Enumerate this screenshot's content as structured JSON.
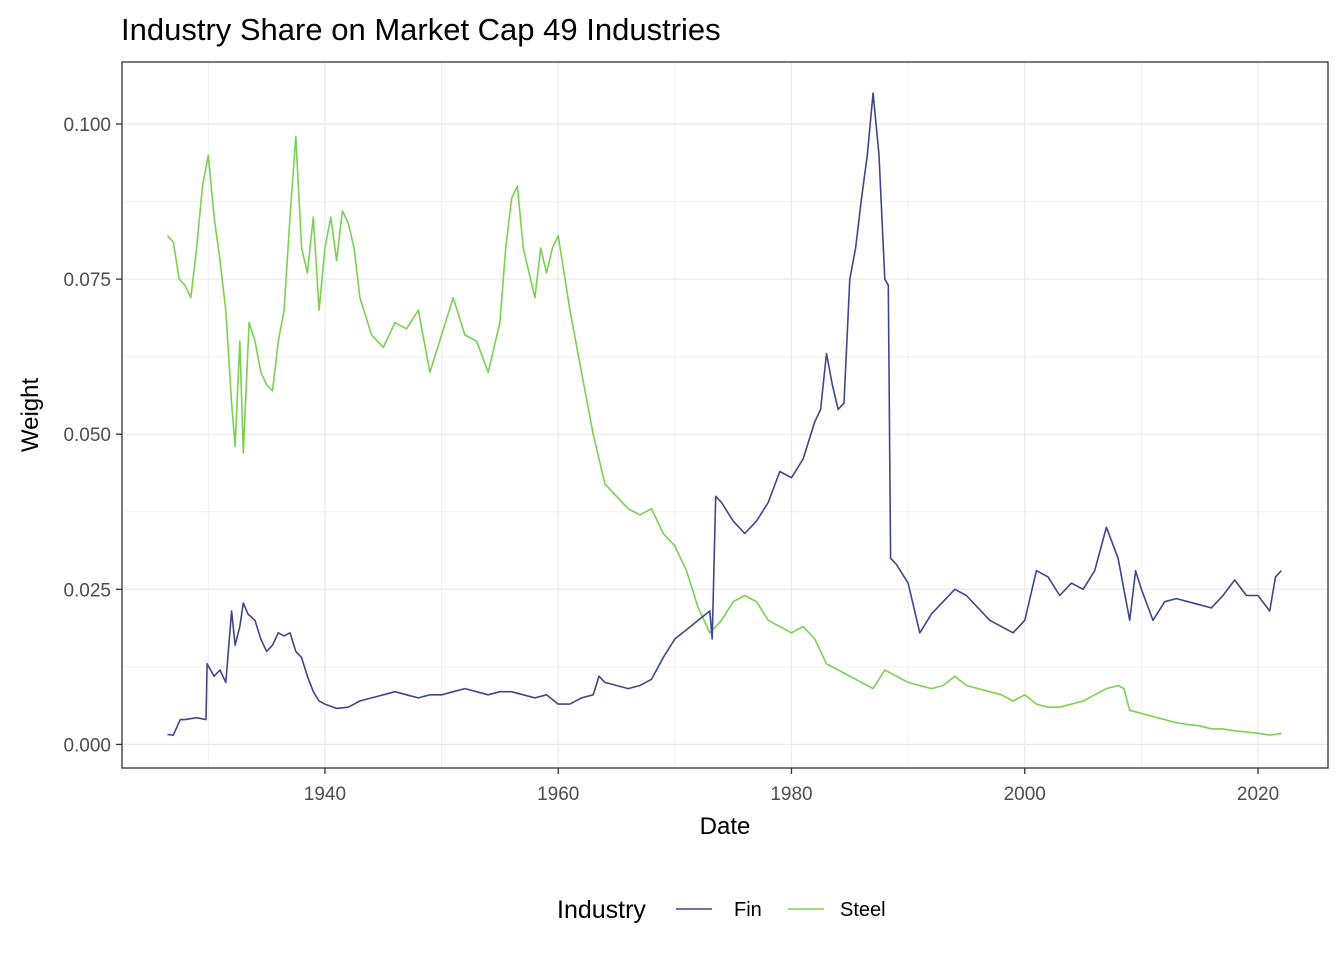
{
  "chart_data": {
    "type": "line",
    "title": "Industry Share on Market Cap 49 Industries",
    "xlabel": "Date",
    "ylabel": "Weight",
    "x_ticks": [
      "1940",
      "1960",
      "1980",
      "2000",
      "2020"
    ],
    "y_ticks": [
      "0.000",
      "0.025",
      "0.050",
      "0.075",
      "0.100"
    ],
    "xlim": [
      1922.6,
      2026.0
    ],
    "ylim": [
      -0.0038,
      0.11
    ],
    "grid": true,
    "legend": {
      "title": "Industry",
      "position": "bottom"
    },
    "series": [
      {
        "name": "Fin",
        "color": "#404788",
        "x": [
          1926.5,
          1927.0,
          1927.6,
          1928.0,
          1929.0,
          1929.8,
          1929.9,
          1930.5,
          1931.0,
          1931.5,
          1932.0,
          1932.3,
          1932.7,
          1933.0,
          1933.4,
          1934.0,
          1934.5,
          1935.0,
          1935.5,
          1936.0,
          1936.5,
          1937.0,
          1937.5,
          1938.0,
          1938.5,
          1939.0,
          1939.5,
          1940.0,
          1941.0,
          1942.0,
          1943.0,
          1944.0,
          1945.0,
          1946.0,
          1947.0,
          1948.0,
          1949.0,
          1950.0,
          1951.0,
          1952.0,
          1953.0,
          1954.0,
          1955.0,
          1956.0,
          1957.0,
          1958.0,
          1959.0,
          1960.0,
          1961.0,
          1962.0,
          1963.0,
          1963.5,
          1964.0,
          1965.0,
          1966.0,
          1967.0,
          1968.0,
          1969.0,
          1970.0,
          1971.0,
          1972.0,
          1973.0,
          1973.2,
          1973.5,
          1974.0,
          1975.0,
          1976.0,
          1977.0,
          1978.0,
          1979.0,
          1980.0,
          1981.0,
          1982.0,
          1982.5,
          1983.0,
          1983.5,
          1984.0,
          1984.5,
          1985.0,
          1985.5,
          1986.0,
          1986.5,
          1987.0,
          1987.5,
          1988.0,
          1988.3,
          1988.5,
          1989.0,
          1990.0,
          1991.0,
          1992.0,
          1993.0,
          1994.0,
          1995.0,
          1996.0,
          1997.0,
          1998.0,
          1999.0,
          2000.0,
          2001.0,
          2002.0,
          2003.0,
          2004.0,
          2005.0,
          2006.0,
          2007.0,
          2008.0,
          2009.0,
          2009.5,
          2010.0,
          2011.0,
          2012.0,
          2013.0,
          2014.0,
          2015.0,
          2016.0,
          2017.0,
          2018.0,
          2019.0,
          2020.0,
          2021.0,
          2021.5,
          2022.0
        ],
        "values": [
          0.0016,
          0.0015,
          0.004,
          0.004,
          0.0043,
          0.004,
          0.013,
          0.011,
          0.012,
          0.01,
          0.0215,
          0.016,
          0.019,
          0.0228,
          0.021,
          0.02,
          0.017,
          0.015,
          0.016,
          0.018,
          0.0175,
          0.018,
          0.015,
          0.014,
          0.011,
          0.0085,
          0.007,
          0.0065,
          0.0058,
          0.006,
          0.007,
          0.0075,
          0.008,
          0.0085,
          0.008,
          0.0075,
          0.008,
          0.008,
          0.0085,
          0.009,
          0.0085,
          0.008,
          0.0085,
          0.0085,
          0.008,
          0.0075,
          0.008,
          0.0065,
          0.0065,
          0.0075,
          0.008,
          0.011,
          0.01,
          0.0095,
          0.009,
          0.0095,
          0.0105,
          0.014,
          0.017,
          0.0185,
          0.02,
          0.0215,
          0.017,
          0.04,
          0.039,
          0.036,
          0.034,
          0.036,
          0.039,
          0.044,
          0.043,
          0.046,
          0.052,
          0.054,
          0.063,
          0.058,
          0.054,
          0.055,
          0.075,
          0.08,
          0.088,
          0.095,
          0.105,
          0.095,
          0.075,
          0.074,
          0.03,
          0.029,
          0.026,
          0.018,
          0.021,
          0.023,
          0.025,
          0.024,
          0.022,
          0.02,
          0.019,
          0.018,
          0.02,
          0.028,
          0.027,
          0.024,
          0.026,
          0.025,
          0.028,
          0.035,
          0.03,
          0.02,
          0.028,
          0.025,
          0.02,
          0.023,
          0.0235,
          0.023,
          0.0225,
          0.022,
          0.024,
          0.0265,
          0.024,
          0.024,
          0.0215,
          0.027,
          0.028
        ]
      },
      {
        "name": "Steel",
        "color": "#7AD151",
        "x": [
          1926.5,
          1927.0,
          1927.5,
          1928.0,
          1928.5,
          1929.0,
          1929.5,
          1930.0,
          1930.5,
          1931.0,
          1931.5,
          1932.0,
          1932.3,
          1932.7,
          1933.0,
          1933.5,
          1934.0,
          1934.5,
          1935.0,
          1935.5,
          1936.0,
          1936.5,
          1937.0,
          1937.5,
          1938.0,
          1938.5,
          1939.0,
          1939.5,
          1940.0,
          1940.5,
          1941.0,
          1941.5,
          1942.0,
          1942.5,
          1943.0,
          1944.0,
          1945.0,
          1946.0,
          1947.0,
          1948.0,
          1949.0,
          1950.0,
          1951.0,
          1952.0,
          1953.0,
          1954.0,
          1955.0,
          1955.5,
          1956.0,
          1956.5,
          1957.0,
          1957.5,
          1958.0,
          1958.5,
          1959.0,
          1959.5,
          1960.0,
          1961.0,
          1962.0,
          1963.0,
          1964.0,
          1965.0,
          1966.0,
          1967.0,
          1968.0,
          1969.0,
          1970.0,
          1971.0,
          1972.0,
          1973.0,
          1974.0,
          1975.0,
          1976.0,
          1977.0,
          1978.0,
          1979.0,
          1980.0,
          1981.0,
          1982.0,
          1983.0,
          1984.0,
          1985.0,
          1986.0,
          1987.0,
          1988.0,
          1989.0,
          1990.0,
          1991.0,
          1992.0,
          1993.0,
          1994.0,
          1995.0,
          1996.0,
          1997.0,
          1998.0,
          1999.0,
          2000.0,
          2001.0,
          2002.0,
          2003.0,
          2004.0,
          2005.0,
          2006.0,
          2007.0,
          2008.0,
          2008.5,
          2009.0,
          2010.0,
          2011.0,
          2012.0,
          2013.0,
          2014.0,
          2015.0,
          2016.0,
          2017.0,
          2018.0,
          2019.0,
          2020.0,
          2021.0,
          2022.0
        ],
        "values": [
          0.082,
          0.081,
          0.075,
          0.074,
          0.072,
          0.08,
          0.09,
          0.095,
          0.085,
          0.078,
          0.07,
          0.055,
          0.048,
          0.065,
          0.047,
          0.068,
          0.065,
          0.06,
          0.058,
          0.057,
          0.065,
          0.07,
          0.085,
          0.098,
          0.08,
          0.076,
          0.085,
          0.07,
          0.08,
          0.085,
          0.078,
          0.086,
          0.084,
          0.08,
          0.072,
          0.066,
          0.064,
          0.068,
          0.067,
          0.07,
          0.06,
          0.066,
          0.072,
          0.066,
          0.065,
          0.06,
          0.068,
          0.08,
          0.088,
          0.09,
          0.08,
          0.076,
          0.072,
          0.08,
          0.076,
          0.08,
          0.082,
          0.07,
          0.06,
          0.05,
          0.042,
          0.04,
          0.038,
          0.037,
          0.038,
          0.034,
          0.032,
          0.028,
          0.022,
          0.018,
          0.02,
          0.023,
          0.024,
          0.023,
          0.02,
          0.019,
          0.018,
          0.019,
          0.017,
          0.013,
          0.012,
          0.011,
          0.01,
          0.009,
          0.012,
          0.011,
          0.01,
          0.0095,
          0.009,
          0.0095,
          0.011,
          0.0095,
          0.009,
          0.0085,
          0.008,
          0.007,
          0.008,
          0.0065,
          0.006,
          0.006,
          0.0065,
          0.007,
          0.008,
          0.009,
          0.0095,
          0.009,
          0.0055,
          0.005,
          0.0045,
          0.004,
          0.0035,
          0.0032,
          0.003,
          0.0025,
          0.0025,
          0.0022,
          0.002,
          0.0018,
          0.0015,
          0.0018
        ]
      }
    ]
  }
}
